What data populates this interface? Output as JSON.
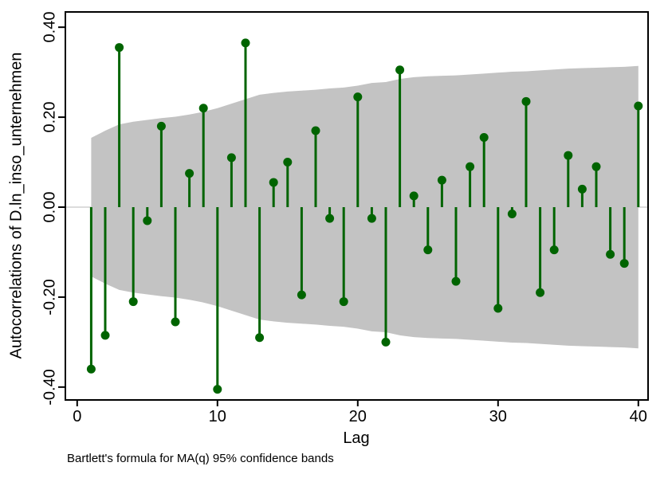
{
  "chart_data": {
    "type": "stem",
    "title": "",
    "ylabel": "Autocorrelations of D.ln_inso_unternehmen",
    "xlabel": "Lag",
    "note": "Bartlett's formula for MA(q) 95% confidence bands",
    "x": [
      1,
      2,
      3,
      4,
      5,
      6,
      7,
      8,
      9,
      10,
      11,
      12,
      13,
      14,
      15,
      16,
      17,
      18,
      19,
      20,
      21,
      22,
      23,
      24,
      25,
      26,
      27,
      28,
      29,
      30,
      31,
      32,
      33,
      34,
      35,
      36,
      37,
      38,
      39,
      40
    ],
    "values": [
      -0.36,
      -0.285,
      0.355,
      -0.21,
      -0.03,
      0.18,
      -0.255,
      0.075,
      0.22,
      -0.405,
      0.11,
      0.365,
      -0.29,
      0.055,
      0.1,
      -0.195,
      0.17,
      -0.025,
      -0.21,
      0.245,
      -0.025,
      -0.3,
      0.305,
      0.025,
      -0.095,
      0.06,
      -0.165,
      0.09,
      0.155,
      -0.225,
      -0.015,
      0.235,
      -0.19,
      -0.095,
      0.115,
      0.04,
      0.09,
      -0.105,
      -0.125,
      0.225
    ],
    "band_upper": [
      0.154,
      0.17,
      0.184,
      0.19,
      0.194,
      0.198,
      0.201,
      0.206,
      0.212,
      0.22,
      0.23,
      0.24,
      0.25,
      0.254,
      0.257,
      0.259,
      0.261,
      0.264,
      0.266,
      0.27,
      0.276,
      0.278,
      0.285,
      0.289,
      0.291,
      0.292,
      0.293,
      0.295,
      0.297,
      0.299,
      0.301,
      0.302,
      0.304,
      0.306,
      0.308,
      0.309,
      0.31,
      0.311,
      0.312,
      0.314
    ],
    "band_symmetric": true,
    "xticks": [
      0,
      10,
      20,
      30,
      40
    ],
    "xtick_labels": [
      "0",
      "10",
      "20",
      "30",
      "40"
    ],
    "yticks": [
      0.4,
      0.2,
      0.0,
      -0.2,
      -0.4
    ],
    "ytick_labels": [
      "0.40",
      "0.20",
      "0.00",
      "-0.20",
      "-0.40"
    ],
    "xlim": [
      -0.85,
      40.7
    ],
    "ylim": [
      -0.429,
      0.434
    ],
    "grid": false,
    "legend": null,
    "colors": {
      "stem": "#006400",
      "band": "#c3c3c3",
      "zero_line": "#dcdcdc",
      "axis": "#000000",
      "background": "#ffffff"
    }
  }
}
